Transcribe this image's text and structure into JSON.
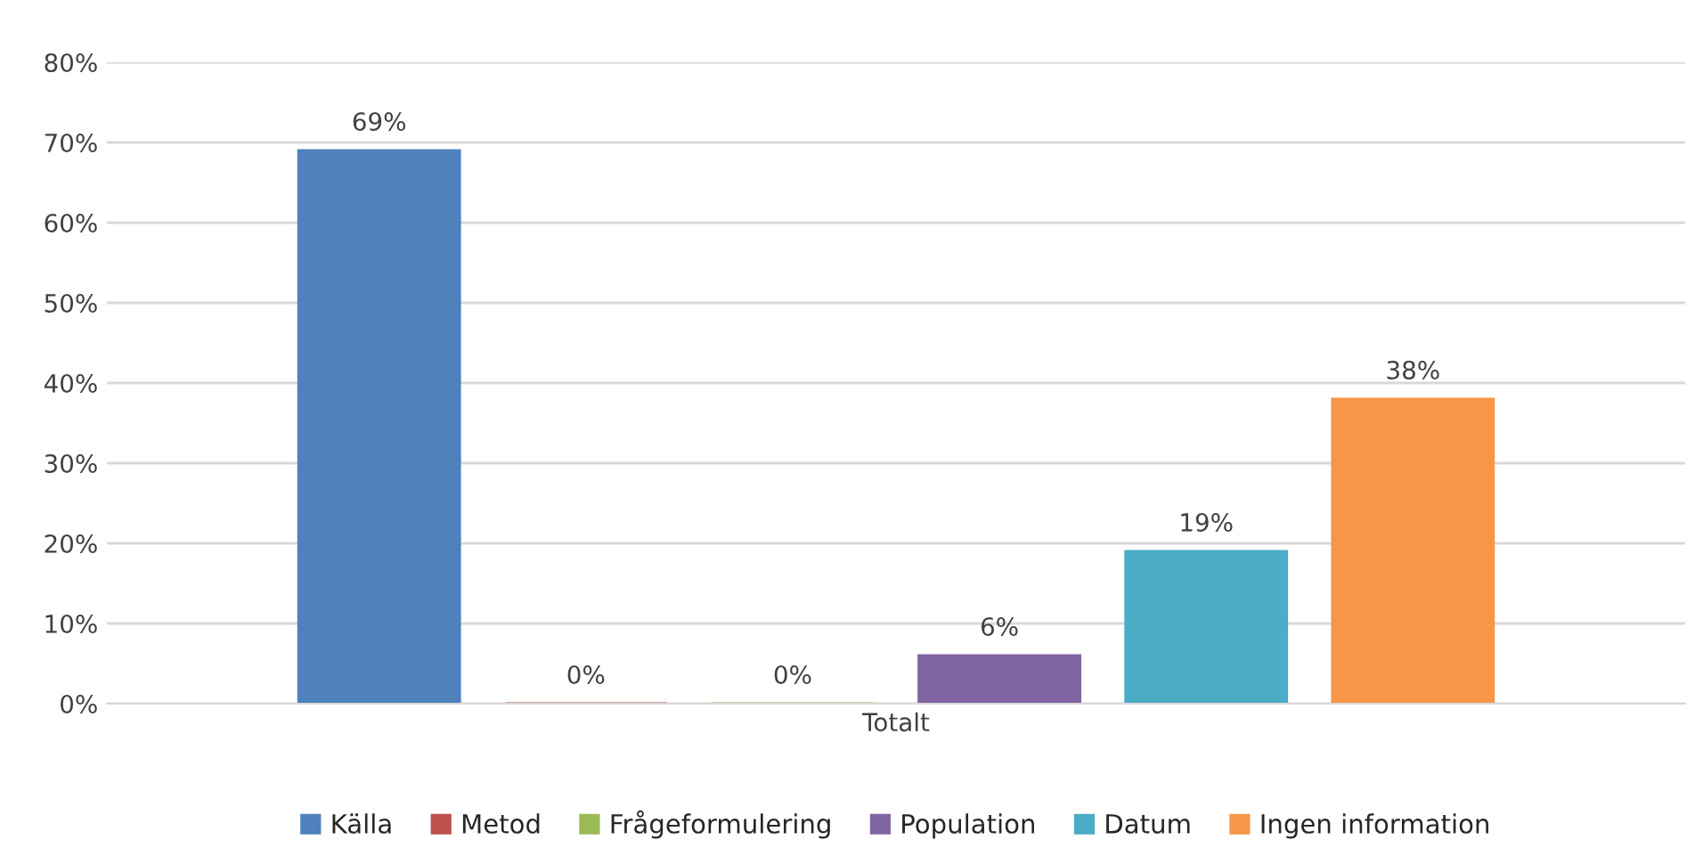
{
  "chart_data": {
    "type": "bar",
    "categories": [
      "Totalt"
    ],
    "series": [
      {
        "name": "Källa",
        "color": "#4f81bd",
        "values": [
          69
        ],
        "value_labels": [
          "69%"
        ]
      },
      {
        "name": "Metod",
        "color": "#c0504d",
        "values": [
          0
        ],
        "value_labels": [
          "0%"
        ]
      },
      {
        "name": "Frågeformulering",
        "color": "#9bbb59",
        "values": [
          0
        ],
        "value_labels": [
          "0%"
        ]
      },
      {
        "name": "Population",
        "color": "#8064a2",
        "values": [
          6
        ],
        "value_labels": [
          "6%"
        ]
      },
      {
        "name": "Datum",
        "color": "#4bacc6",
        "values": [
          19
        ],
        "value_labels": [
          "19%"
        ]
      },
      {
        "name": "Ingen information",
        "color": "#f79646",
        "values": [
          38
        ],
        "value_labels": [
          "38%"
        ]
      }
    ],
    "ylim": [
      0,
      80
    ],
    "yticks": [
      {
        "value": 0,
        "label": "0%"
      },
      {
        "value": 10,
        "label": "10%"
      },
      {
        "value": 20,
        "label": "20%"
      },
      {
        "value": 30,
        "label": "30%"
      },
      {
        "value": 40,
        "label": "40%"
      },
      {
        "value": 50,
        "label": "50%"
      },
      {
        "value": 60,
        "label": "60%"
      },
      {
        "value": 70,
        "label": "70%"
      },
      {
        "value": 80,
        "label": "80%"
      }
    ],
    "grid": "y",
    "legend": "bottom"
  }
}
